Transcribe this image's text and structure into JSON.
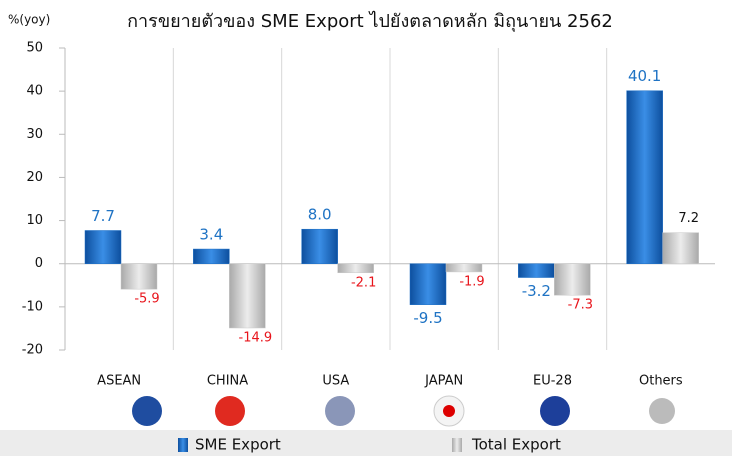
{
  "chart_data": {
    "type": "bar",
    "title": "การขยายตัวของ SME Export ไปยังตลาดหลัก มิถุนายน 2562",
    "y_axis_label": "%(yoy)",
    "categories": [
      "ASEAN",
      "CHINA",
      "USA",
      "JAPAN",
      "EU-28",
      "Others"
    ],
    "series": [
      {
        "name": "SME Export",
        "color": "#1c6fc6",
        "label_color": "#1f73c4",
        "values": [
          7.7,
          3.4,
          8,
          -9.5,
          -3.2,
          40.1
        ],
        "value_labels": [
          "7.7",
          "3.4",
          "8.0",
          "-9.5",
          "-3.2",
          "40.1"
        ]
      },
      {
        "name": "Total Export",
        "color": "#c9c9c9",
        "label_color": "#111111",
        "negative_label_color": "#e8141b",
        "values": [
          -5.9,
          -14.9,
          -2.1,
          -1.9,
          -7.3,
          7.2
        ],
        "value_labels": [
          "-5.9",
          "-14.9",
          "-2.1",
          "-1.9",
          "-7.3",
          "7.2"
        ]
      }
    ],
    "ylim": [
      -20,
      50
    ],
    "yticks": [
      -20,
      -10,
      0,
      10,
      20,
      30,
      40,
      50
    ],
    "grid": "vertical"
  }
}
